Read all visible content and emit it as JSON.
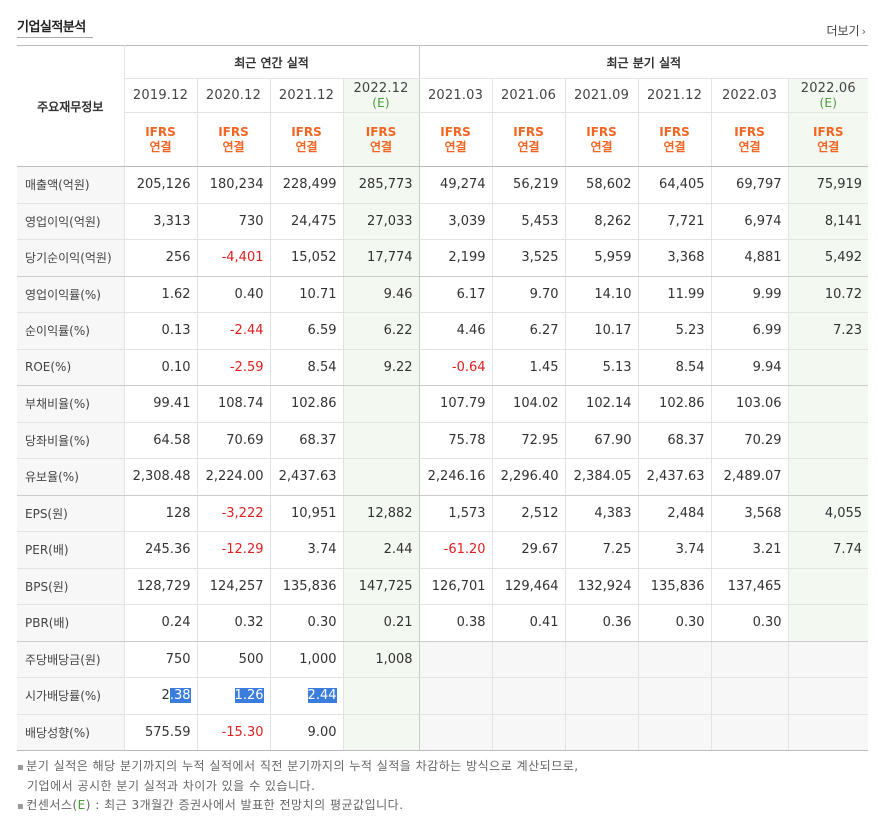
{
  "section_title": "기업실적분석",
  "more_link": "더보기",
  "header": {
    "row_label": "주요재무정보",
    "annual_group": "최근 연간 실적",
    "quarter_group": "최근 분기 실적",
    "annual_periods": [
      {
        "date": "2019.12",
        "est": ""
      },
      {
        "date": "2020.12",
        "est": ""
      },
      {
        "date": "2021.12",
        "est": ""
      },
      {
        "date": "2022.12",
        "est": "(E)"
      }
    ],
    "quarter_periods": [
      {
        "date": "2021.03",
        "est": ""
      },
      {
        "date": "2021.06",
        "est": ""
      },
      {
        "date": "2021.09",
        "est": ""
      },
      {
        "date": "2021.12",
        "est": ""
      },
      {
        "date": "2022.03",
        "est": ""
      },
      {
        "date": "2022.06",
        "est": "(E)"
      }
    ],
    "basis_line1": "IFRS",
    "basis_line2": "연결"
  },
  "rows": [
    {
      "label": "매출액(억원)",
      "values": [
        "205,126",
        "180,234",
        "228,499",
        "285,773",
        "49,274",
        "56,219",
        "58,602",
        "64,405",
        "69,797",
        "75,919"
      ]
    },
    {
      "label": "영업이익(억원)",
      "values": [
        "3,313",
        "730",
        "24,475",
        "27,033",
        "3,039",
        "5,453",
        "8,262",
        "7,721",
        "6,974",
        "8,141"
      ]
    },
    {
      "label": "당기순이익(억원)",
      "values": [
        "256",
        "-4,401",
        "15,052",
        "17,774",
        "2,199",
        "3,525",
        "5,959",
        "3,368",
        "4,881",
        "5,492"
      ]
    },
    {
      "label": "영업이익률(%)",
      "values": [
        "1.62",
        "0.40",
        "10.71",
        "9.46",
        "6.17",
        "9.70",
        "14.10",
        "11.99",
        "9.99",
        "10.72"
      ]
    },
    {
      "label": "순이익률(%)",
      "values": [
        "0.13",
        "-2.44",
        "6.59",
        "6.22",
        "4.46",
        "6.27",
        "10.17",
        "5.23",
        "6.99",
        "7.23"
      ]
    },
    {
      "label": "ROE(%)",
      "values": [
        "0.10",
        "-2.59",
        "8.54",
        "9.22",
        "-0.64",
        "1.45",
        "5.13",
        "8.54",
        "9.94",
        ""
      ]
    },
    {
      "label": "부채비율(%)",
      "values": [
        "99.41",
        "108.74",
        "102.86",
        "",
        "107.79",
        "104.02",
        "102.14",
        "102.86",
        "103.06",
        ""
      ]
    },
    {
      "label": "당좌비율(%)",
      "values": [
        "64.58",
        "70.69",
        "68.37",
        "",
        "75.78",
        "72.95",
        "67.90",
        "68.37",
        "70.29",
        ""
      ]
    },
    {
      "label": "유보율(%)",
      "values": [
        "2,308.48",
        "2,224.00",
        "2,437.63",
        "",
        "2,246.16",
        "2,296.40",
        "2,384.05",
        "2,437.63",
        "2,489.07",
        ""
      ]
    },
    {
      "label": "EPS(원)",
      "values": [
        "128",
        "-3,222",
        "10,951",
        "12,882",
        "1,573",
        "2,512",
        "4,383",
        "2,484",
        "3,568",
        "4,055"
      ]
    },
    {
      "label": "PER(배)",
      "values": [
        "245.36",
        "-12.29",
        "3.74",
        "2.44",
        "-61.20",
        "29.67",
        "7.25",
        "3.74",
        "3.21",
        "7.74"
      ]
    },
    {
      "label": "BPS(원)",
      "values": [
        "128,729",
        "124,257",
        "135,836",
        "147,725",
        "126,701",
        "129,464",
        "132,924",
        "135,836",
        "137,465",
        ""
      ]
    },
    {
      "label": "PBR(배)",
      "values": [
        "0.24",
        "0.32",
        "0.30",
        "0.21",
        "0.38",
        "0.41",
        "0.36",
        "0.30",
        "0.30",
        ""
      ]
    },
    {
      "label": "주당배당금(원)",
      "values": [
        "750",
        "500",
        "1,000",
        "1,008",
        "",
        "",
        "",
        "",
        "",
        ""
      ]
    },
    {
      "label": "시가배당률(%)",
      "values": [
        "2.38",
        "1.26",
        "2.44",
        "",
        "",
        "",
        "",
        "",
        "",
        ""
      ]
    },
    {
      "label": "배당성향(%)",
      "values": [
        "575.59",
        "-15.30",
        "9.00",
        "",
        "",
        "",
        "",
        "",
        "",
        ""
      ]
    }
  ],
  "notes": {
    "line1": "분기 실적은 해당 분기까지의 누적 실적에서 직전 분기까지의 누적 실적을 차감하는 방식으로 계산되므로,",
    "line2": "기업에서 공시한 분기 실적과 차이가 있을 수 있습니다.",
    "line3_prefix": "컨센서스(",
    "line3_e": "E",
    "line3_suffix": ") : 최근 3개월간 증권사에서 발표한 전망치의 평균값입니다."
  }
}
